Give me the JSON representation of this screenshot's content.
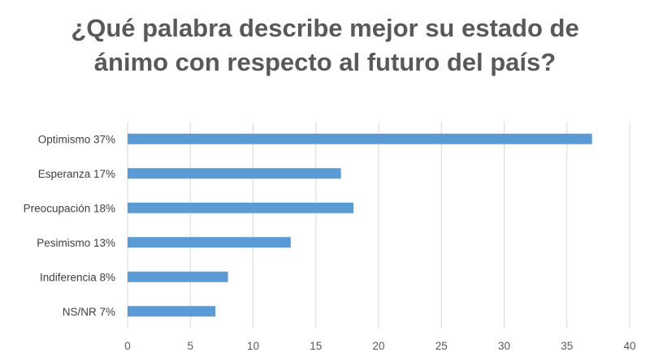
{
  "title_lines": [
    "¿Qué palabra describe mejor su estado de",
    "ánimo con respecto al futuro del país?"
  ],
  "chart_data": {
    "type": "bar",
    "orientation": "horizontal",
    "title": "¿Qué palabra describe mejor su estado de ánimo con respecto al futuro del país?",
    "categories": [
      "Optimismo  37%",
      "Esperanza  17%",
      "Preocupación  18%",
      "Pesimismo  13%",
      "Indiferencia  8%",
      "NS/NR  7%"
    ],
    "values": [
      37,
      17,
      18,
      13,
      8,
      7
    ],
    "xlim": [
      0,
      40
    ],
    "x_ticks": [
      0,
      5,
      10,
      15,
      20,
      25,
      30,
      35,
      40
    ],
    "grid": "vertical",
    "bar_color": "#5B9BD5",
    "grid_color": "#D9D9D9"
  }
}
